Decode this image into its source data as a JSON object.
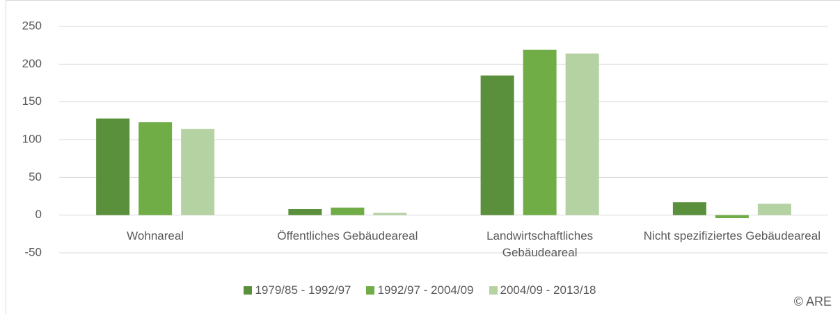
{
  "chart_data": {
    "type": "bar",
    "categories": [
      "Wohnareal",
      "Öffentliches Gebäudeareal",
      "Landwirtschaftliches Gebäudeareal",
      "Nicht spezifiziertes Gebäudeareal"
    ],
    "series": [
      {
        "name": "1979/85 - 1992/97",
        "color": "#5a8f3c",
        "values": [
          128,
          8,
          185,
          17
        ]
      },
      {
        "name": "1992/97 - 2004/09",
        "color": "#70ad47",
        "values": [
          123,
          10,
          219,
          -4
        ]
      },
      {
        "name": "2004/09 - 2013/18",
        "color": "#b5d2a3",
        "values": [
          114,
          3,
          214,
          15
        ]
      }
    ],
    "ylim": [
      -50,
      250
    ],
    "yticks": [
      -50,
      0,
      50,
      100,
      150,
      200,
      250
    ],
    "grid": true,
    "legend": "bottom",
    "credit": "© ARE"
  }
}
